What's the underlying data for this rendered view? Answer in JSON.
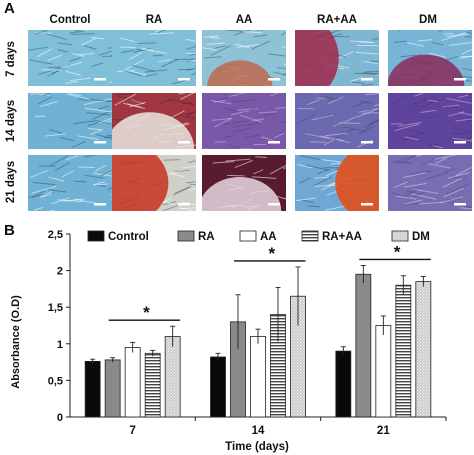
{
  "figure": {
    "panel_a_label": "A",
    "panel_b_label": "B",
    "columns": [
      "Control",
      "RA",
      "AA",
      "RA+AA",
      "DM"
    ],
    "rows": [
      "7 days",
      "14 days",
      "21 days"
    ],
    "micrographs": [
      [
        {
          "base": "#7fc0d8",
          "stain": "none",
          "stain_color": "#b0305a",
          "stain_extent": 0.0
        },
        {
          "base": "#7fc0d8",
          "stain": "none",
          "stain_color": "#b0305a",
          "stain_extent": 0.0
        },
        {
          "base": "#8ec3d6",
          "stain": "bottom",
          "stain_color": "#c06a4e",
          "stain_extent": 0.35
        },
        {
          "base": "#7fb6d2",
          "stain": "left",
          "stain_color": "#a0284a",
          "stain_extent": 0.45
        },
        {
          "base": "#78b4d6",
          "stain": "bottom",
          "stain_color": "#8a2a5a",
          "stain_extent": 0.45
        }
      ],
      [
        {
          "base": "#6fb2d4",
          "stain": "none",
          "stain_color": "#b0305a",
          "stain_extent": 0.0
        },
        {
          "base": "#a03640",
          "stain": "bottom",
          "stain_color": "#e8e6e0",
          "stain_extent": 0.55
        },
        {
          "base": "#6f5fae",
          "stain": "all",
          "stain_color": "#8a4aa2",
          "stain_extent": 0.6
        },
        {
          "base": "#5e78b8",
          "stain": "all",
          "stain_color": "#8a4a9a",
          "stain_extent": 0.5
        },
        {
          "base": "#3d4aa0",
          "stain": "all",
          "stain_color": "#9a3a9a",
          "stain_extent": 0.6
        }
      ],
      [
        {
          "base": "#6fb2d4",
          "stain": "none",
          "stain_color": "#b0305a",
          "stain_extent": 0.0
        },
        {
          "base": "#d0d0c8",
          "stain": "left",
          "stain_color": "#c8301e",
          "stain_extent": 0.6
        },
        {
          "base": "#5a1a30",
          "stain": "bottom",
          "stain_color": "#e6d8e0",
          "stain_extent": 0.5
        },
        {
          "base": "#6fa8d4",
          "stain": "right",
          "stain_color": "#e0501a",
          "stain_extent": 0.45
        },
        {
          "base": "#6a78c0",
          "stain": "all",
          "stain_color": "#a05090",
          "stain_extent": 0.45
        }
      ]
    ]
  },
  "chart_data": {
    "type": "bar",
    "categories": [
      "7",
      "14",
      "21"
    ],
    "xlabel": "Time (days)",
    "ylabel": "Absorbance (O.D)",
    "ylim": [
      0,
      2.5
    ],
    "yticks": [
      "0",
      "0,5",
      "1",
      "1,5",
      "2",
      "2,5"
    ],
    "legend_position": "top",
    "series": [
      {
        "name": "Control",
        "fill": "solid-black",
        "values": [
          0.76,
          0.82,
          0.9
        ],
        "errors": [
          0.03,
          0.05,
          0.06
        ]
      },
      {
        "name": "RA",
        "fill": "solid-gray",
        "values": [
          0.78,
          1.3,
          1.95
        ],
        "errors": [
          0.03,
          0.37,
          0.12
        ]
      },
      {
        "name": "AA",
        "fill": "white",
        "values": [
          0.95,
          1.1,
          1.25
        ],
        "errors": [
          0.07,
          0.1,
          0.13
        ]
      },
      {
        "name": "RA+AA",
        "fill": "horizontal-stripes",
        "values": [
          0.87,
          1.4,
          1.8
        ],
        "errors": [
          0.04,
          0.37,
          0.13
        ]
      },
      {
        "name": "DM",
        "fill": "dotted",
        "values": [
          1.1,
          1.65,
          1.85
        ],
        "errors": [
          0.14,
          0.4,
          0.07
        ]
      }
    ],
    "significance": [
      {
        "group": "7",
        "label": "*"
      },
      {
        "group": "14",
        "label": "*"
      },
      {
        "group": "21",
        "label": "*"
      }
    ]
  }
}
